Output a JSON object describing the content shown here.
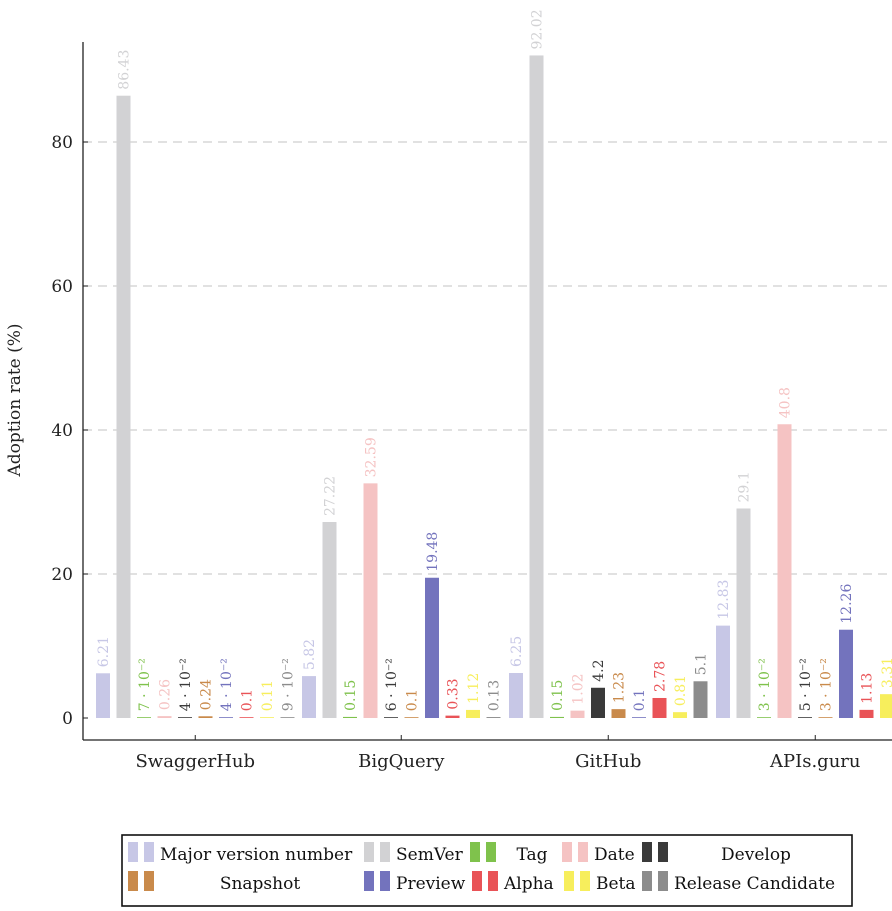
{
  "chart_data": {
    "type": "bar",
    "title": "",
    "xlabel": "",
    "ylabel": "Adoption rate (%)",
    "ylim": [
      0,
      92
    ],
    "yticks": [
      "0",
      "20",
      "40",
      "60",
      "80"
    ],
    "grid": true,
    "legend_position": "bottom",
    "categories": [
      "SwaggerHub",
      "BigQuery",
      "GitHub",
      "APIs.guru"
    ],
    "series": [
      {
        "name": "Major version number",
        "color": "#c7c7e6",
        "values": [
          6.21,
          5.82,
          6.25,
          12.83
        ],
        "labels": [
          "6.21",
          "5.82",
          "6.25",
          "12.83"
        ]
      },
      {
        "name": "SemVer",
        "color": "#d2d2d4",
        "values": [
          86.43,
          27.22,
          92.02,
          29.1
        ],
        "labels": [
          "86.43",
          "27.22",
          "92.02",
          "29.1"
        ]
      },
      {
        "name": "Tag",
        "color": "#7fc24c",
        "values": [
          0.07,
          0.15,
          0.15,
          0.03
        ],
        "labels": [
          "7 · 10⁻²",
          "0.15",
          "0.15",
          "3 · 10⁻²"
        ]
      },
      {
        "name": "Date",
        "color": "#f5c3c3",
        "values": [
          0.26,
          32.59,
          1.02,
          40.8
        ],
        "labels": [
          "0.26",
          "32.59",
          "1.02",
          "40.8"
        ]
      },
      {
        "name": "Develop",
        "color": "#3a3a3a",
        "values": [
          0.04,
          0.06,
          4.2,
          0.05
        ],
        "labels": [
          "4 · 10⁻²",
          "6 · 10⁻²",
          "4.2",
          "5 · 10⁻²"
        ]
      },
      {
        "name": "Snapshot",
        "color": "#c98a4b",
        "values": [
          0.24,
          0.1,
          1.23,
          0.03
        ],
        "labels": [
          "0.24",
          "0.1",
          "1.23",
          "3 · 10⁻²"
        ]
      },
      {
        "name": "Preview",
        "color": "#7373bd",
        "values": [
          0.04,
          19.48,
          0.1,
          12.26
        ],
        "labels": [
          "4 · 10⁻²",
          "19.48",
          "0.1",
          "12.26"
        ]
      },
      {
        "name": "Alpha",
        "color": "#e95357",
        "values": [
          0.1,
          0.33,
          2.78,
          1.13
        ],
        "labels": [
          "0.1",
          "0.33",
          "2.78",
          "1.13"
        ]
      },
      {
        "name": "Beta",
        "color": "#f7ee5c",
        "values": [
          0.11,
          1.12,
          0.81,
          3.31
        ],
        "labels": [
          "0.11",
          "1.12",
          "0.81",
          "3.31"
        ]
      },
      {
        "name": "Release Candidate",
        "color": "#8c8c8c",
        "values": [
          0.09,
          0.13,
          5.1,
          0
        ],
        "labels": [
          "9 · 10⁻²",
          "0.13",
          "5.1",
          ""
        ]
      }
    ]
  }
}
